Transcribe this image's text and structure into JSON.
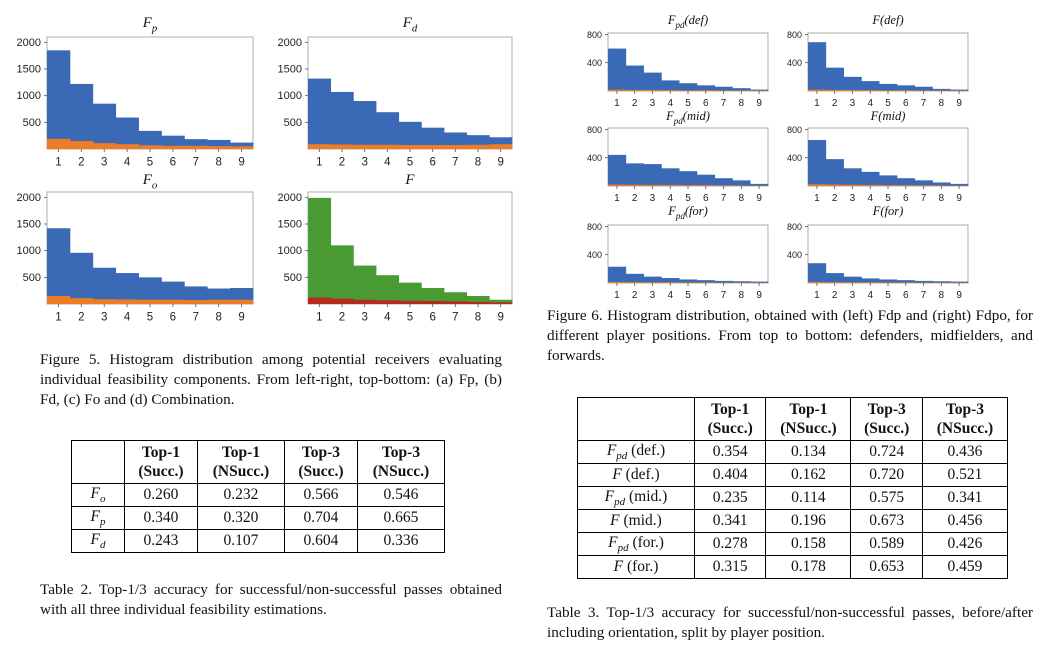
{
  "colors": {
    "blue": "#3a6ab5",
    "orange": "#ee7b25",
    "green": "#4a9a33",
    "red": "#b5291f"
  },
  "fig5": {
    "chart_data": [
      {
        "type": "bar",
        "title": "F_p",
        "categories": [
          "1",
          "2",
          "3",
          "4",
          "5",
          "6",
          "7",
          "8",
          "9"
        ],
        "series": [
          {
            "values": [
              1850,
              1220,
              850,
              590,
              340,
              250,
              185,
              170,
              120
            ]
          },
          {
            "values": [
              190,
              150,
              110,
              90,
              70,
              60,
              60,
              55,
              50
            ]
          }
        ],
        "yticks": [
          "500",
          "1000",
          "1500",
          "2000"
        ],
        "ylim": [
          0,
          2100
        ]
      },
      {
        "type": "bar",
        "title": "F_d",
        "categories": [
          "1",
          "2",
          "3",
          "4",
          "5",
          "6",
          "7",
          "8",
          "9"
        ],
        "series": [
          {
            "values": [
              1320,
              1070,
              900,
              690,
              510,
              400,
              310,
              260,
              220
            ]
          },
          {
            "values": [
              90,
              85,
              80,
              80,
              75,
              75,
              75,
              80,
              90
            ]
          }
        ],
        "yticks": [
          "500",
          "1000",
          "1500",
          "2000"
        ],
        "ylim": [
          0,
          2100
        ]
      },
      {
        "type": "bar",
        "title": "F_o",
        "categories": [
          "1",
          "2",
          "3",
          "4",
          "5",
          "6",
          "7",
          "8",
          "9"
        ],
        "series": [
          {
            "values": [
              1420,
              960,
              680,
              580,
              500,
              420,
              330,
              290,
              300
            ]
          },
          {
            "values": [
              150,
              110,
              90,
              85,
              80,
              80,
              75,
              80,
              80
            ]
          }
        ],
        "yticks": [
          "500",
          "1000",
          "1500",
          "2000"
        ],
        "ylim": [
          0,
          2100
        ]
      },
      {
        "type": "bar",
        "title": "F",
        "categories": [
          "1",
          "2",
          "3",
          "4",
          "5",
          "6",
          "7",
          "8",
          "9"
        ],
        "series": [
          {
            "values": [
              1990,
              1100,
              720,
              540,
              400,
              300,
              220,
              150,
              80
            ]
          },
          {
            "values": [
              120,
              100,
              80,
              70,
              60,
              55,
              50,
              40,
              30
            ]
          }
        ],
        "yticks": [
          "500",
          "1000",
          "1500",
          "2000"
        ],
        "ylim": [
          0,
          2100
        ]
      }
    ],
    "caption": "Figure 5. Histogram distribution among potential receivers evaluating individual feasibility components. From left-right, top-bottom: (a) Fp, (b) Fd, (c) Fo and (d) Combination."
  },
  "fig6": {
    "chart_data": [
      {
        "type": "bar",
        "title": "F_pd(def)",
        "categories": [
          "1",
          "2",
          "3",
          "4",
          "5",
          "6",
          "7",
          "8",
          "9"
        ],
        "series": [
          {
            "values": [
              600,
              360,
              260,
              150,
              110,
              80,
              60,
              40,
              20
            ]
          },
          {
            "values": [
              20,
              15,
              15,
              12,
              10,
              10,
              8,
              8,
              6
            ]
          }
        ],
        "yticks": [
          "400",
          "800"
        ],
        "ylim": [
          0,
          820
        ]
      },
      {
        "type": "bar",
        "title": "F(def)",
        "categories": [
          "1",
          "2",
          "3",
          "4",
          "5",
          "6",
          "7",
          "8",
          "9"
        ],
        "series": [
          {
            "values": [
              690,
              330,
              200,
              140,
              100,
              80,
              60,
              30,
              20
            ]
          },
          {
            "values": [
              20,
              15,
              15,
              12,
              10,
              10,
              8,
              8,
              6
            ]
          }
        ],
        "yticks": [
          "400",
          "800"
        ],
        "ylim": [
          0,
          820
        ]
      },
      {
        "type": "bar",
        "title": "F_pd(mid)",
        "categories": [
          "1",
          "2",
          "3",
          "4",
          "5",
          "6",
          "7",
          "8",
          "9"
        ],
        "series": [
          {
            "values": [
              440,
              320,
              310,
              250,
              210,
              160,
              110,
              80,
              30
            ]
          },
          {
            "values": [
              20,
              18,
              16,
              15,
              14,
              12,
              10,
              8,
              6
            ]
          }
        ],
        "yticks": [
          "400",
          "800"
        ],
        "ylim": [
          0,
          820
        ]
      },
      {
        "type": "bar",
        "title": "F(mid)",
        "categories": [
          "1",
          "2",
          "3",
          "4",
          "5",
          "6",
          "7",
          "8",
          "9"
        ],
        "series": [
          {
            "values": [
              650,
              380,
              250,
              200,
              150,
              110,
              80,
              50,
              30
            ]
          },
          {
            "values": [
              25,
              20,
              18,
              15,
              14,
              12,
              10,
              8,
              6
            ]
          }
        ],
        "yticks": [
          "400",
          "800"
        ],
        "ylim": [
          0,
          820
        ]
      },
      {
        "type": "bar",
        "title": "F_pd(for)",
        "categories": [
          "1",
          "2",
          "3",
          "4",
          "5",
          "6",
          "7",
          "8",
          "9"
        ],
        "series": [
          {
            "values": [
              230,
              130,
              90,
              70,
              50,
              40,
              30,
              25,
              20
            ]
          },
          {
            "values": [
              15,
              12,
              10,
              10,
              8,
              8,
              6,
              6,
              5
            ]
          }
        ],
        "yticks": [
          "400",
          "800"
        ],
        "ylim": [
          0,
          820
        ]
      },
      {
        "type": "bar",
        "title": "F(for)",
        "categories": [
          "1",
          "2",
          "3",
          "4",
          "5",
          "6",
          "7",
          "8",
          "9"
        ],
        "series": [
          {
            "values": [
              280,
              140,
              90,
              65,
              50,
              40,
              30,
              25,
              20
            ]
          },
          {
            "values": [
              15,
              12,
              10,
              10,
              8,
              8,
              6,
              6,
              5
            ]
          }
        ],
        "yticks": [
          "400",
          "800"
        ],
        "ylim": [
          0,
          820
        ]
      }
    ],
    "caption": "Figure 6. Histogram distribution, obtained with (left) Fdp and (right) Fdpo, for different player positions. From top to bottom: defenders, midfielders, and forwards."
  },
  "table2": {
    "headers": [
      [
        "Top-1",
        "(Succ.)"
      ],
      [
        "Top-1",
        "(NSucc.)"
      ],
      [
        "Top-3",
        "(Succ.)"
      ],
      [
        "Top-3",
        "(NSucc.)"
      ]
    ],
    "rows": [
      {
        "label": "F",
        "sub": "o",
        "values": [
          "0.260",
          "0.232",
          "0.566",
          "0.546"
        ]
      },
      {
        "label": "F",
        "sub": "p",
        "values": [
          "0.340",
          "0.320",
          "0.704",
          "0.665"
        ]
      },
      {
        "label": "F",
        "sub": "d",
        "values": [
          "0.243",
          "0.107",
          "0.604",
          "0.336"
        ]
      }
    ],
    "caption": "Table 2. Top-1/3 accuracy for successful/non-successful passes obtained with all three individual feasibility estimations."
  },
  "table3": {
    "headers": [
      [
        "Top-1",
        "(Succ.)"
      ],
      [
        "Top-1",
        "(NSucc.)"
      ],
      [
        "Top-3",
        "(Succ.)"
      ],
      [
        "Top-3",
        "(NSucc.)"
      ]
    ],
    "rows": [
      {
        "label": "F",
        "sub": "pd",
        "suffix": " (def.)",
        "values": [
          "0.354",
          "0.134",
          "0.724",
          "0.436"
        ]
      },
      {
        "label": "F",
        "sub": "",
        "suffix": " (def.)",
        "values": [
          "0.404",
          "0.162",
          "0.720",
          "0.521"
        ]
      },
      {
        "label": "F",
        "sub": "pd",
        "suffix": " (mid.)",
        "values": [
          "0.235",
          "0.114",
          "0.575",
          "0.341"
        ]
      },
      {
        "label": "F",
        "sub": "",
        "suffix": " (mid.)",
        "values": [
          "0.341",
          "0.196",
          "0.673",
          "0.456"
        ]
      },
      {
        "label": "F",
        "sub": "pd",
        "suffix": " (for.)",
        "values": [
          "0.278",
          "0.158",
          "0.589",
          "0.426"
        ]
      },
      {
        "label": "F",
        "sub": "",
        "suffix": " (for.)",
        "values": [
          "0.315",
          "0.178",
          "0.653",
          "0.459"
        ]
      }
    ],
    "caption": "Table 3. Top-1/3 accuracy for successful/non-successful passes, before/after including orientation, split by player position."
  }
}
